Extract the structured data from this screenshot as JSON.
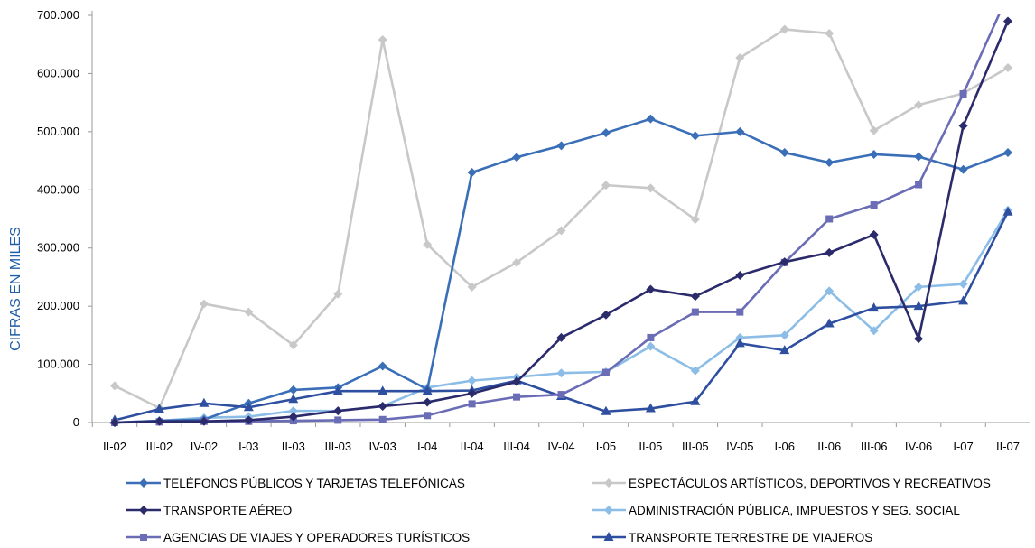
{
  "chart_data": {
    "type": "line",
    "title": "",
    "xlabel": "",
    "ylabel": "CIFRAS EN MILES",
    "ylim": [
      0,
      700000
    ],
    "y_ticks": [
      "0",
      "100.000",
      "200.000",
      "300.000",
      "400.000",
      "500.000",
      "600.000",
      "700.000"
    ],
    "y_tick_values": [
      0,
      100000,
      200000,
      300000,
      400000,
      500000,
      600000,
      700000
    ],
    "grid": false,
    "legend_position": "bottom",
    "categories": [
      "II-02",
      "III-02",
      "IV-02",
      "I-03",
      "II-03",
      "III-03",
      "IV-03",
      "I-04",
      "II-04",
      "III-04",
      "IV-04",
      "I-05",
      "II-05",
      "III-05",
      "IV-05",
      "I-06",
      "II-06",
      "III-06",
      "IV-06",
      "I-07",
      "II-07"
    ],
    "series": [
      {
        "name": "TELÉFONOS PÚBLICOS Y TARJETAS TELEFÓNICAS",
        "color": "#3a6fb8",
        "marker": "diamond",
        "values": [
          0,
          3000,
          5000,
          33000,
          56000,
          60000,
          97000,
          57000,
          430000,
          456000,
          476000,
          498000,
          522000,
          493000,
          500000,
          464000,
          447000,
          461000,
          457000,
          435000,
          464000
        ]
      },
      {
        "name": "ESPECTÁCULOS ARTÍSTICOS, DEPORTIVOS Y RECREATIVOS",
        "color": "#c8c8c8",
        "marker": "diamond",
        "values": [
          63000,
          25000,
          204000,
          190000,
          133000,
          221000,
          658000,
          306000,
          233000,
          275000,
          330000,
          408000,
          403000,
          349000,
          627000,
          676000,
          669000,
          502000,
          546000,
          566000,
          610000
        ]
      },
      {
        "name": "TRANSPORTE AÉREO",
        "color": "#2b2a6b",
        "marker": "diamond",
        "values": [
          0,
          2000,
          2000,
          4000,
          10000,
          20000,
          28000,
          35000,
          50000,
          70000,
          146000,
          185000,
          229000,
          217000,
          253000,
          276000,
          292000,
          323000,
          144000,
          510000,
          690000
        ]
      },
      {
        "name": "ADMINISTRACIÓN PÚBLICA, IMPUESTOS Y SEG. SOCIAL",
        "color": "#8cbde6",
        "marker": "diamond",
        "values": [
          0,
          3000,
          8000,
          10000,
          20000,
          20000,
          28000,
          60000,
          72000,
          78000,
          85000,
          87000,
          131000,
          89000,
          146000,
          150000,
          226000,
          158000,
          233000,
          238000,
          365000
        ]
      },
      {
        "name": "AGENCIAS DE VIAJES Y OPERADORES TURÍSTICOS",
        "color": "#6a6cb5",
        "marker": "square",
        "values": [
          0,
          1000,
          2000,
          2000,
          3000,
          4000,
          5000,
          12000,
          32000,
          44000,
          48000,
          86000,
          146000,
          190000,
          190000,
          275000,
          350000,
          374000,
          409000,
          565000,
          735000
        ]
      },
      {
        "name": "TRANSPORTE TERRESTRE DE VIAJEROS",
        "color": "#2e4fa0",
        "marker": "triangle",
        "values": [
          4000,
          23000,
          33000,
          26000,
          40000,
          54000,
          54000,
          54000,
          55000,
          72000,
          45000,
          19000,
          24000,
          36000,
          136000,
          124000,
          170000,
          197000,
          200000,
          209000,
          362000
        ]
      }
    ]
  }
}
